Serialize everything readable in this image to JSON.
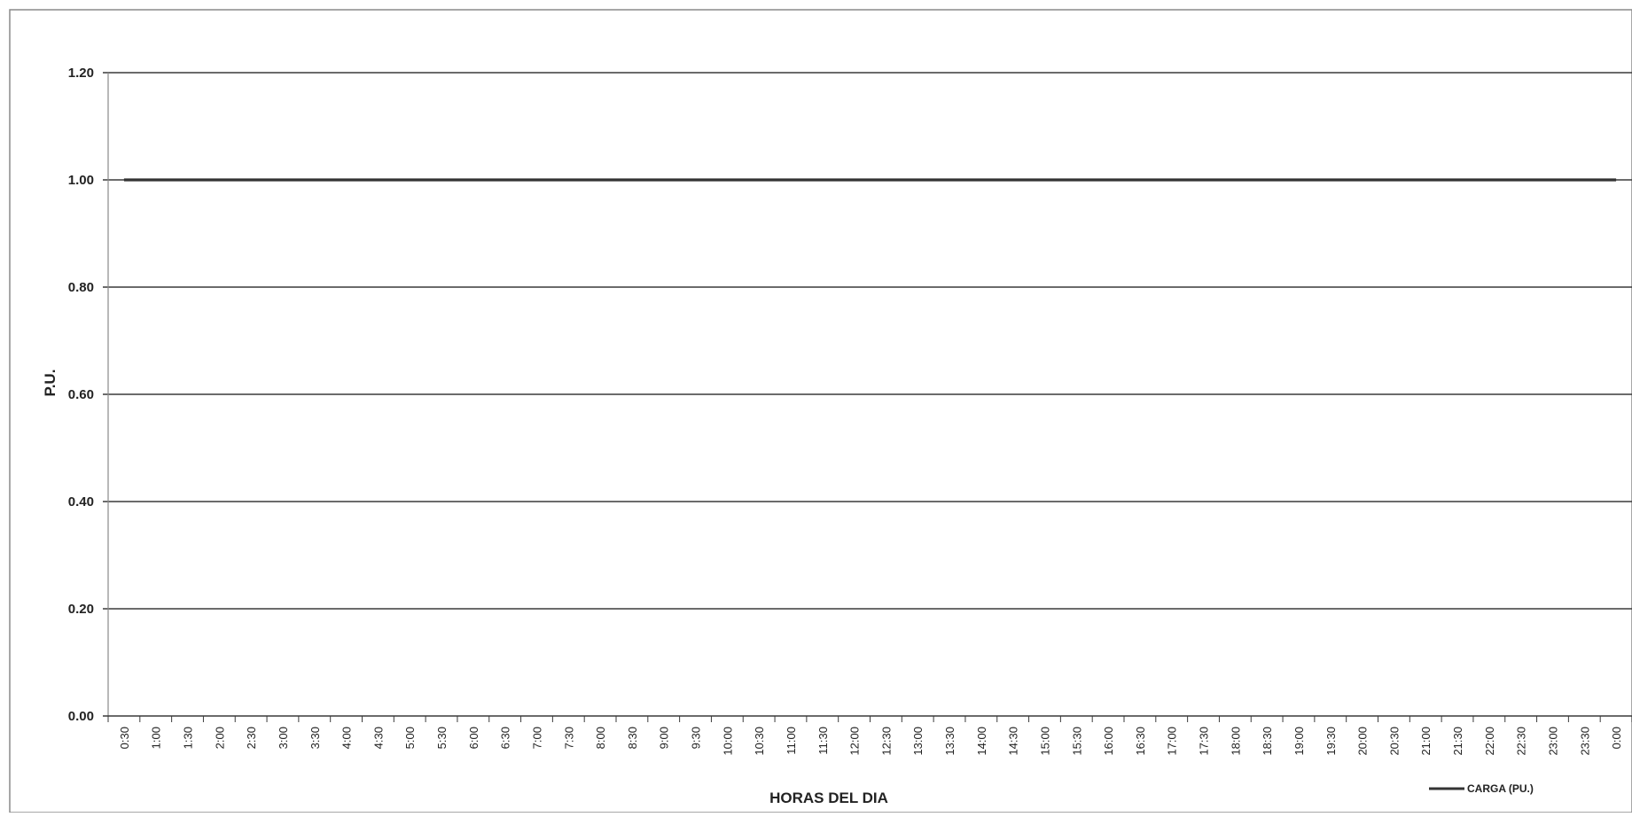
{
  "chart_data": {
    "type": "line",
    "title": "",
    "xlabel": "HORAS DEL DIA",
    "ylabel": "P.U.",
    "ylim": [
      0,
      1.2
    ],
    "yticks": [
      "0.00",
      "0.20",
      "0.40",
      "0.60",
      "0.80",
      "1.00",
      "1.20"
    ],
    "grid": true,
    "legend_position": "bottom-right",
    "categories": [
      "0:30",
      "1:00",
      "1:30",
      "2:00",
      "2:30",
      "3:00",
      "3:30",
      "4:00",
      "4:30",
      "5:00",
      "5:30",
      "6:00",
      "6:30",
      "7:00",
      "7:30",
      "8:00",
      "8:30",
      "9:00",
      "9:30",
      "10:00",
      "10:30",
      "11:00",
      "11:30",
      "12:00",
      "12:30",
      "13:00",
      "13:30",
      "14:00",
      "14:30",
      "15:00",
      "15:30",
      "16:00",
      "16:30",
      "17:00",
      "17:30",
      "18:00",
      "18:30",
      "19:00",
      "19:30",
      "20:00",
      "20:30",
      "21:00",
      "21:30",
      "22:00",
      "22:30",
      "23:00",
      "23:30",
      "0:00"
    ],
    "series": [
      {
        "name": "CARGA (PU.)",
        "color": "#333333",
        "values": [
          1,
          1,
          1,
          1,
          1,
          1,
          1,
          1,
          1,
          1,
          1,
          1,
          1,
          1,
          1,
          1,
          1,
          1,
          1,
          1,
          1,
          1,
          1,
          1,
          1,
          1,
          1,
          1,
          1,
          1,
          1,
          1,
          1,
          1,
          1,
          1,
          1,
          1,
          1,
          1,
          1,
          1,
          1,
          1,
          1,
          1,
          1,
          1
        ]
      }
    ]
  }
}
